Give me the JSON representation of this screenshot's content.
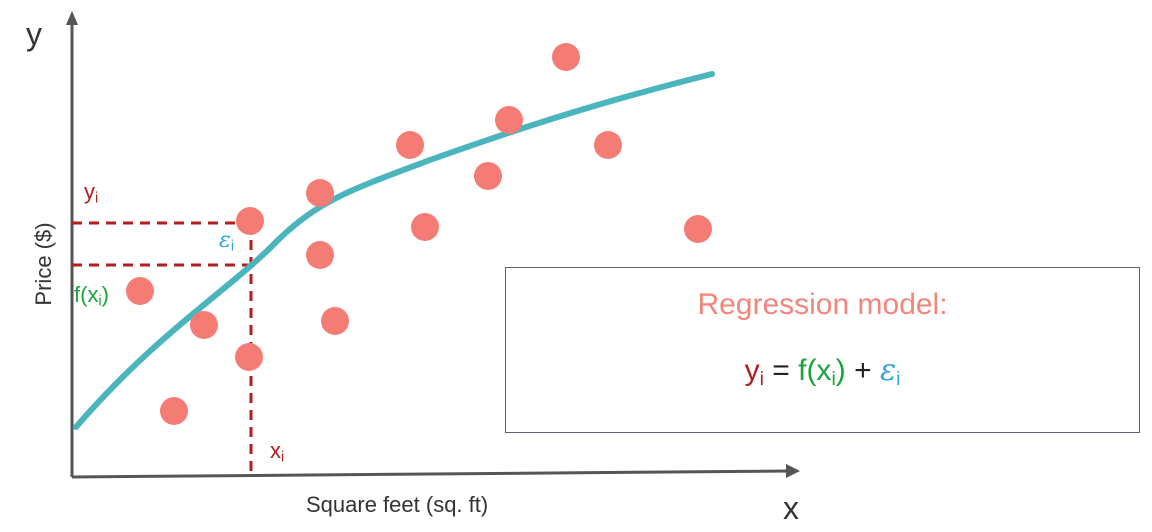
{
  "labels": {
    "y_axis_var": "y",
    "x_axis_var": "x",
    "y_axis_title": "Price ($)",
    "x_axis_title": "Square feet (sq. ft)",
    "yi": {
      "base": "y",
      "sub": "i"
    },
    "fxi": {
      "open": "f(x",
      "sub": "i",
      "close": ")"
    },
    "epsilon_i": {
      "base": "ε",
      "sub": "i"
    },
    "xi": {
      "base": "x",
      "sub": "i"
    }
  },
  "model_box": {
    "title": "Regression model:",
    "equation": {
      "y": "y",
      "y_sub": "i",
      "eq": " = ",
      "f_open": "f(x",
      "f_sub": "i",
      "f_close": ")",
      "plus": " + ",
      "eps": "ε",
      "eps_sub": "i"
    }
  },
  "colors": {
    "point": "#f47c74",
    "curve": "#4bb5be",
    "guide": "#b01e1e",
    "y_label": "#b01e1e",
    "f_label": "#1aa43c",
    "eps_label": "#2fa6d9",
    "model_title": "#f4857c",
    "axis": "#555555"
  }
}
